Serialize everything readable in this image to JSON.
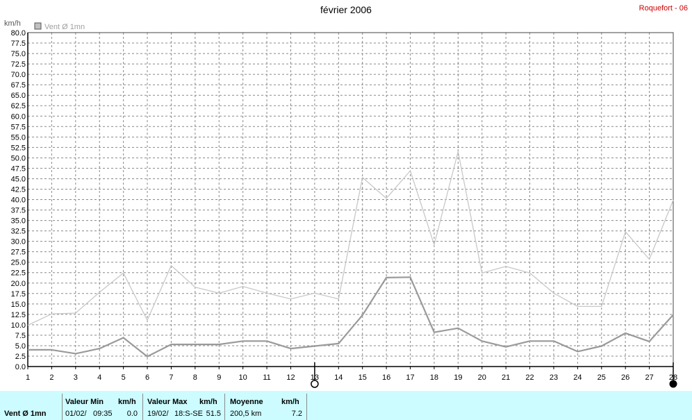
{
  "title": "février 2006",
  "station": "Roquefort - 06",
  "legend_label": "Vent Ø 1mn",
  "unit_label": "km/h",
  "colors": {
    "series_avg": "#9a9a9a",
    "series_gust": "#c8c8c8",
    "grid": "#888888",
    "footer_bg": "#ccfcff",
    "station": "#cc0000"
  },
  "chart_data": {
    "type": "line",
    "title": "février 2006",
    "ylabel": "km/h",
    "ylim": [
      0,
      80
    ],
    "y_ticks": [
      "0.0",
      "2.5",
      "5.0",
      "7.5",
      "10.0",
      "12.5",
      "15.0",
      "17.5",
      "20.0",
      "22.5",
      "25.0",
      "27.5",
      "30.0",
      "32.5",
      "35.0",
      "37.5",
      "40.0",
      "42.5",
      "45.0",
      "47.5",
      "50.0",
      "52.5",
      "55.0",
      "57.5",
      "60.0",
      "62.5",
      "65.0",
      "67.5",
      "70.0",
      "72.5",
      "75.0",
      "77.5",
      "80.0"
    ],
    "x": [
      1,
      2,
      3,
      4,
      5,
      6,
      7,
      8,
      9,
      10,
      11,
      12,
      13,
      14,
      15,
      16,
      17,
      18,
      19,
      20,
      21,
      22,
      23,
      24,
      25,
      26,
      27,
      28
    ],
    "x_tick_labels": [
      "1",
      "2",
      "3",
      "4",
      "5",
      "6",
      "7",
      "8",
      "9",
      "10",
      "11",
      "12",
      "13",
      "14",
      "15",
      "16",
      "17",
      "18",
      "19",
      "20",
      "21",
      "22",
      "23",
      "24",
      "25",
      "26",
      "27",
      "28"
    ],
    "grid": true,
    "legend_position": "top-left",
    "series": [
      {
        "name": "Vent Ø 1mn",
        "values": [
          4.0,
          4.0,
          3.1,
          4.3,
          6.9,
          2.4,
          5.3,
          5.3,
          5.3,
          6.1,
          6.1,
          4.3,
          4.9,
          5.5,
          12.3,
          21.3,
          21.4,
          8.2,
          9.2,
          6.1,
          4.7,
          6.1,
          6.1,
          3.6,
          4.9,
          8.0,
          6.0,
          12.4
        ]
      },
      {
        "values": [
          9.9,
          12.6,
          12.8,
          17.8,
          22.4,
          11.1,
          24.2,
          19.0,
          17.6,
          19.2,
          17.6,
          16.2,
          17.6,
          16.2,
          45.3,
          40.3,
          46.9,
          29.2,
          51.5,
          22.4,
          24.0,
          22.4,
          17.6,
          14.4,
          14.4,
          32.3,
          25.7,
          39.9
        ]
      }
    ],
    "markers": [
      {
        "day": "13",
        "symbol": "open-circle"
      },
      {
        "day": "28",
        "symbol": "filled-circle"
      }
    ]
  },
  "footer": {
    "series_label": "Vent Ø 1mn",
    "min": {
      "header": "Valeur Min",
      "unit": "km/h",
      "date": "01/02/",
      "time": "09:35",
      "value": "0.0"
    },
    "max": {
      "header": "Valeur Max",
      "unit": "km/h",
      "date": "19/02/",
      "detail": "18:S-SE",
      "value": "51.5"
    },
    "mean": {
      "header": "Moyenne",
      "unit": "km/h",
      "distance": "200,5 km",
      "value": "7.2"
    }
  }
}
